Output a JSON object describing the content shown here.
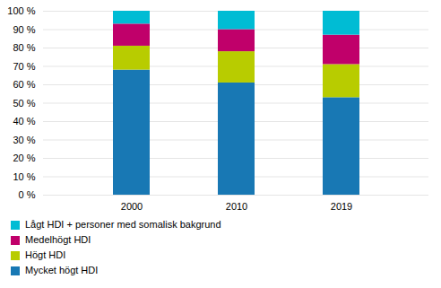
{
  "chart_data": {
    "type": "bar",
    "stacked": true,
    "categories": [
      "2000",
      "2010",
      "2019"
    ],
    "series": [
      {
        "name": "Mycket högt HDI",
        "color": "#1878b4",
        "values": [
          68,
          61,
          53
        ]
      },
      {
        "name": "Högt HDI",
        "color": "#b8cc00",
        "values": [
          13,
          17,
          18
        ]
      },
      {
        "name": "Medelhögt HDI",
        "color": "#c0006a",
        "values": [
          12,
          12,
          16
        ]
      },
      {
        "name": "Lågt HDI + personer med somalisk bakgrund",
        "color": "#00bcd4",
        "values": [
          7,
          10,
          13
        ]
      }
    ],
    "ylim": [
      0,
      100
    ],
    "yticks": [
      {
        "value": 0,
        "label": "0 %"
      },
      {
        "value": 10,
        "label": "10 %"
      },
      {
        "value": 20,
        "label": "20 %"
      },
      {
        "value": 30,
        "label": "30 %"
      },
      {
        "value": 40,
        "label": "40 %"
      },
      {
        "value": 50,
        "label": "50 %"
      },
      {
        "value": 60,
        "label": "60 %"
      },
      {
        "value": 70,
        "label": "70 %"
      },
      {
        "value": 80,
        "label": "80 %"
      },
      {
        "value": 90,
        "label": "90 %"
      },
      {
        "value": 100,
        "label": "100 %"
      }
    ],
    "grid": true,
    "legend": "bottom"
  }
}
